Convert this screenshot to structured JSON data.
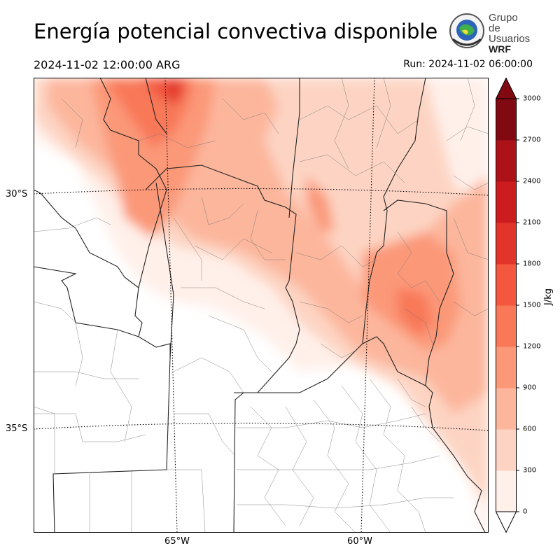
{
  "title": "Energía potencial convectiva disponible",
  "valid_time": "2024-11-02 12:00:00 ARG",
  "run_time": "Run: 2024-11-02 06:00:00",
  "logo": {
    "line1": "Grupo de",
    "line2": "Usuarios",
    "line3": "WRF",
    "icon": "globe-emblem-icon"
  },
  "lat_labels": [
    "30°S",
    "35°S"
  ],
  "lon_labels": [
    "65°W",
    "60°W"
  ],
  "colorbar": {
    "unit": "J/kg",
    "ticks": [
      "0",
      "300",
      "600",
      "900",
      "1200",
      "1500",
      "1800",
      "2100",
      "2400",
      "2700",
      "3000"
    ],
    "colors": [
      "#fff0ea",
      "#fdd4c3",
      "#fcb69c",
      "#fb9878",
      "#f87858",
      "#f3573d",
      "#e3342a",
      "#cc1c1e",
      "#ad1219",
      "#810911"
    ],
    "extend": "both"
  },
  "colors": {
    "frame": "#000000",
    "boundary": "#222222",
    "minor_boundary": "#777777"
  }
}
